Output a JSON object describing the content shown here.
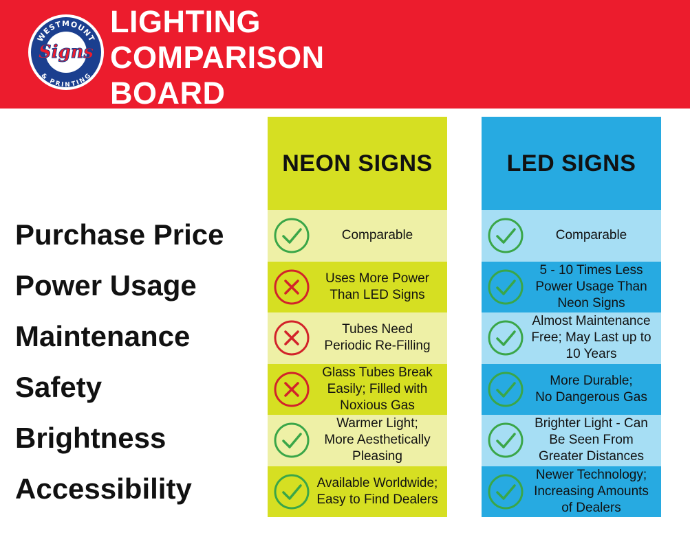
{
  "colors": {
    "banner": "#ec1c2d",
    "neon_dark": "#d6df22",
    "neon_light": "#eef0a6",
    "led_dark": "#27aae1",
    "led_light": "#a6def4",
    "check_green": "#3aa648",
    "cross_red": "#d2232a",
    "logo_blue": "#1b3f8f"
  },
  "logo": {
    "top_text": "WESTMOUNT",
    "center_text": "Signs",
    "bottom_text": "& PRINTING"
  },
  "header": {
    "title_lines": [
      "LIGHTING",
      "COMPARISON",
      "BOARD"
    ]
  },
  "rows": [
    "Purchase Price",
    "Power Usage",
    "Maintenance",
    "Safety",
    "Brightness",
    "Accessibility"
  ],
  "columns": [
    {
      "title": "NEON SIGNS",
      "cells": [
        {
          "icon": "check-icon",
          "lines": [
            "Comparable"
          ]
        },
        {
          "icon": "cross-icon",
          "lines": [
            "Uses More Power",
            "Than LED Signs"
          ]
        },
        {
          "icon": "cross-icon",
          "lines": [
            "Tubes Need",
            "Periodic Re-Filling"
          ]
        },
        {
          "icon": "cross-icon",
          "lines": [
            "Glass Tubes Break",
            "Easily; Filled with",
            "Noxious Gas"
          ]
        },
        {
          "icon": "check-icon",
          "lines": [
            "Warmer Light;",
            "More Aesthetically",
            "Pleasing"
          ]
        },
        {
          "icon": "check-icon",
          "lines": [
            "Available Worldwide;",
            "Easy to Find Dealers"
          ]
        }
      ]
    },
    {
      "title": "LED SIGNS",
      "cells": [
        {
          "icon": "check-icon",
          "lines": [
            "Comparable"
          ]
        },
        {
          "icon": "check-icon",
          "lines": [
            "5 - 10 Times Less",
            "Power Usage Than",
            "Neon Signs"
          ]
        },
        {
          "icon": "check-icon",
          "lines": [
            "Almost Maintenance",
            "Free; May Last up to",
            "10 Years"
          ]
        },
        {
          "icon": "check-icon",
          "lines": [
            "More Durable;",
            "No Dangerous Gas"
          ]
        },
        {
          "icon": "check-icon",
          "lines": [
            "Brighter Light - Can",
            "Be Seen From",
            "Greater Distances"
          ]
        },
        {
          "icon": "check-icon",
          "lines": [
            "Newer Technology;",
            "Increasing Amounts",
            "of Dealers"
          ]
        }
      ]
    }
  ]
}
